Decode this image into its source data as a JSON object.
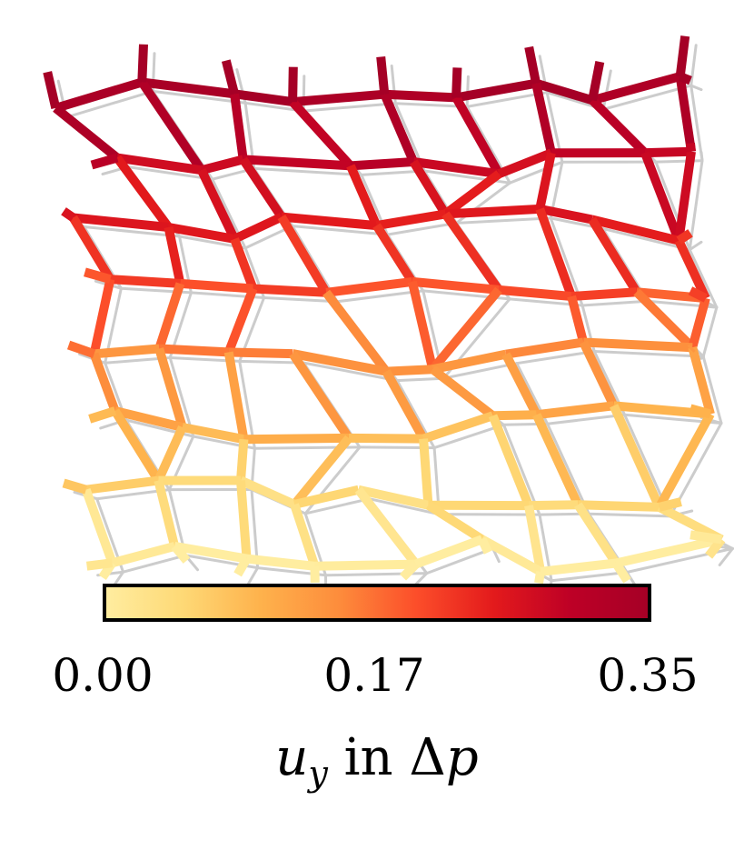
{
  "chart_data": {
    "type": "network",
    "colormap": {
      "name": "YlOrRd",
      "stops": [
        "#ffeda0",
        "#fed976",
        "#feb24c",
        "#fd8d3c",
        "#fc4e2a",
        "#e31a1c",
        "#bd0026",
        "#a50026"
      ]
    },
    "colorbar": {
      "vmin": 0.0,
      "vmax": 0.35,
      "ticks": [
        0.0,
        0.17,
        0.35
      ],
      "tick_labels": [
        "0.00",
        "0.17",
        "0.35"
      ],
      "label_symbol": "u",
      "label_subscript": "y",
      "label_rest": " in Δ",
      "label_end": "p"
    },
    "reference_color": "#cccccc",
    "edge_value_field": "u_y (vertical displacement, increases from bottom to top)"
  }
}
